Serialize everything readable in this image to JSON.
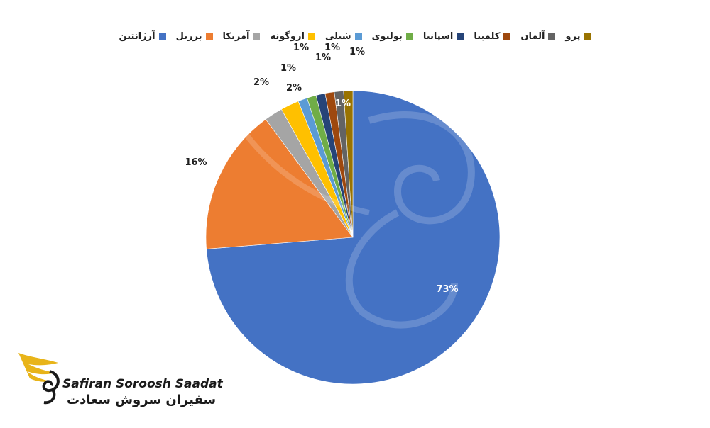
{
  "chart_data": {
    "type": "pie",
    "title": "",
    "categories": [
      "آرژانتین",
      "برزیل",
      "آمریکا",
      "اروگونه",
      "شیلی",
      "بولیوی",
      "اسپانیا",
      "کلمبیا",
      "آلمان",
      "پرو"
    ],
    "values": [
      73,
      16,
      2,
      2,
      1,
      1,
      1,
      1,
      1,
      1
    ],
    "data_labels": [
      "73%",
      "16%",
      "2%",
      "2%",
      "1%",
      "1%",
      "1%",
      "1%",
      "1%",
      "1%"
    ],
    "colors": [
      "#4472C4",
      "#ED7D31",
      "#A5A5A5",
      "#FFC000",
      "#5B9BD5",
      "#70AD47",
      "#264478",
      "#9E480E",
      "#636363",
      "#997300"
    ],
    "legend_position": "top",
    "legend_direction": "rtl"
  },
  "watermark": {
    "brand_en": "Safiran Soroosh Saadat",
    "brand_fa": "سفیران سروش سعادت",
    "logo_icon": "swan-wing-logo-icon"
  }
}
